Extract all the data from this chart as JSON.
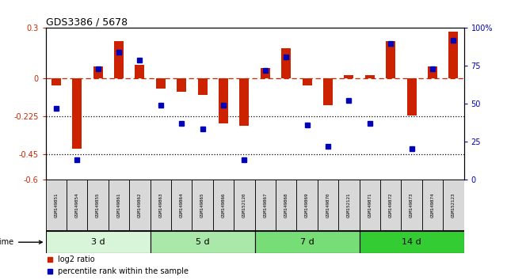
{
  "title": "GDS3386 / 5678",
  "samples": [
    "GSM149851",
    "GSM149854",
    "GSM149855",
    "GSM149861",
    "GSM149862",
    "GSM149863",
    "GSM149864",
    "GSM149865",
    "GSM149866",
    "GSM152120",
    "GSM149867",
    "GSM149868",
    "GSM149869",
    "GSM149870",
    "GSM152121",
    "GSM149871",
    "GSM149872",
    "GSM149873",
    "GSM149874",
    "GSM152123"
  ],
  "log2_ratio": [
    -0.04,
    -0.42,
    0.07,
    0.22,
    0.08,
    -0.06,
    -0.08,
    -0.1,
    -0.27,
    -0.28,
    0.06,
    0.18,
    -0.04,
    -0.16,
    0.02,
    0.02,
    0.22,
    -0.22,
    0.07,
    0.28
  ],
  "percentile_rank": [
    47,
    13,
    73,
    84,
    79,
    49,
    37,
    33,
    49,
    13,
    72,
    81,
    36,
    22,
    52,
    37,
    90,
    20,
    73,
    92
  ],
  "groups": [
    {
      "label": "3 d",
      "start": 0,
      "end": 5,
      "color": "#d9f5d9"
    },
    {
      "label": "5 d",
      "start": 5,
      "end": 10,
      "color": "#aae8aa"
    },
    {
      "label": "7 d",
      "start": 10,
      "end": 15,
      "color": "#77dd77"
    },
    {
      "label": "14 d",
      "start": 15,
      "end": 20,
      "color": "#33cc33"
    }
  ],
  "ylim_left": [
    -0.6,
    0.3
  ],
  "ylim_right": [
    0,
    100
  ],
  "yticks_left": [
    0.3,
    0.0,
    -0.225,
    -0.45,
    -0.6
  ],
  "ytick_labels_left": [
    "0.3",
    "0",
    "-0.225",
    "-0.45",
    "-0.6"
  ],
  "yticks_right": [
    100,
    75,
    50,
    25,
    0
  ],
  "ytick_labels_right": [
    "100%",
    "75",
    "50",
    "25",
    "0"
  ],
  "hlines": [
    -0.225,
    -0.45
  ],
  "bar_color": "#cc2200",
  "dot_color": "#0000bb",
  "dashed_line_color": "#cc2200",
  "background_color": "#ffffff",
  "legend_items": [
    {
      "label": "log2 ratio",
      "color": "#cc2200"
    },
    {
      "label": "percentile rank within the sample",
      "color": "#0000bb"
    }
  ],
  "fig_width": 6.4,
  "fig_height": 3.54,
  "dpi": 100
}
